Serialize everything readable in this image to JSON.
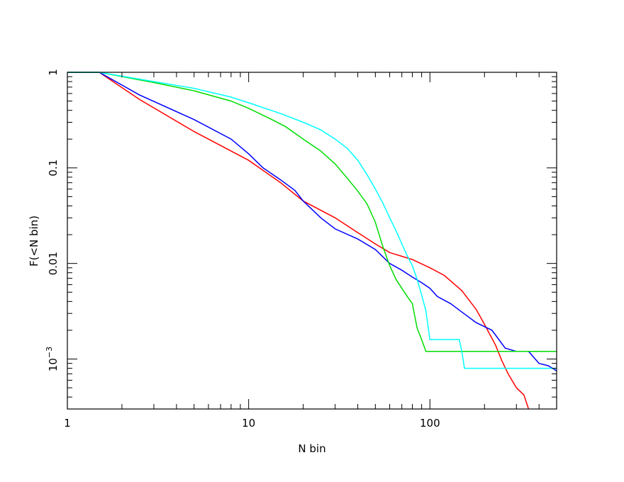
{
  "chart_data": {
    "type": "line",
    "title": "",
    "xlabel": "N  bin",
    "ylabel": "F(<N bin)",
    "xscale": "log",
    "yscale": "log",
    "xlim": [
      1,
      500
    ],
    "ylim": [
      0.0003,
      1
    ],
    "grid": false,
    "legend": "none",
    "x_ticks": [
      {
        "value": 1,
        "label": "1"
      },
      {
        "value": 10,
        "label": "10"
      },
      {
        "value": 100,
        "label": "100"
      }
    ],
    "y_ticks": [
      {
        "value": 1,
        "label": "1"
      },
      {
        "value": 0.1,
        "label": "0.1"
      },
      {
        "value": 0.01,
        "label": "0.01"
      },
      {
        "value": 0.001,
        "label": "10",
        "exponent": "−3"
      }
    ],
    "series": [
      {
        "color": "#ff0000",
        "x": [
          1,
          1.5,
          2.5,
          5,
          10,
          15,
          20,
          30,
          40,
          50,
          60,
          80,
          100,
          120,
          150,
          180,
          200,
          230,
          250,
          270,
          300,
          330,
          350
        ],
        "y": [
          1,
          1,
          0.52,
          0.24,
          0.12,
          0.07,
          0.045,
          0.03,
          0.021,
          0.016,
          0.013,
          0.011,
          0.009,
          0.0075,
          0.0052,
          0.0033,
          0.0023,
          0.0014,
          0.00095,
          0.0007,
          0.0005,
          0.00042,
          0.0003
        ]
      },
      {
        "color": "#0000ff",
        "x": [
          1,
          1.5,
          2.5,
          5,
          8,
          10,
          12,
          15,
          18,
          20,
          25,
          30,
          40,
          50,
          60,
          70,
          80,
          90,
          100,
          110,
          130,
          150,
          180,
          220,
          260,
          300,
          350,
          400,
          450,
          500
        ],
        "y": [
          1,
          1,
          0.58,
          0.32,
          0.2,
          0.14,
          0.1,
          0.075,
          0.058,
          0.045,
          0.03,
          0.023,
          0.018,
          0.014,
          0.01,
          0.0085,
          0.0072,
          0.0063,
          0.0055,
          0.0045,
          0.0038,
          0.0031,
          0.0024,
          0.002,
          0.0013,
          0.0012,
          0.0012,
          0.0009,
          0.00085,
          0.00075
        ]
      },
      {
        "color": "#00dd00",
        "x": [
          1,
          1.5,
          3,
          5,
          8,
          10,
          13,
          16,
          20,
          25,
          30,
          35,
          40,
          45,
          50,
          55,
          60,
          65,
          70,
          75,
          80,
          85,
          90,
          95,
          500
        ],
        "y": [
          1,
          1,
          0.78,
          0.64,
          0.5,
          0.42,
          0.33,
          0.27,
          0.2,
          0.15,
          0.11,
          0.078,
          0.057,
          0.042,
          0.027,
          0.015,
          0.0095,
          0.0068,
          0.0055,
          0.0045,
          0.0038,
          0.0021,
          0.0016,
          0.0012,
          0.0012
        ]
      },
      {
        "color": "#00ffff",
        "x": [
          1,
          1.5,
          3,
          5,
          8,
          10,
          15,
          20,
          25,
          30,
          35,
          40,
          45,
          50,
          55,
          60,
          65,
          70,
          75,
          80,
          85,
          90,
          95,
          100,
          145,
          150,
          155,
          500
        ],
        "y": [
          1,
          1,
          0.8,
          0.68,
          0.55,
          0.48,
          0.37,
          0.3,
          0.25,
          0.2,
          0.16,
          0.12,
          0.085,
          0.06,
          0.043,
          0.03,
          0.022,
          0.016,
          0.012,
          0.0095,
          0.0068,
          0.0047,
          0.0032,
          0.0016,
          0.0016,
          0.0012,
          0.0008,
          0.0008
        ]
      }
    ]
  }
}
